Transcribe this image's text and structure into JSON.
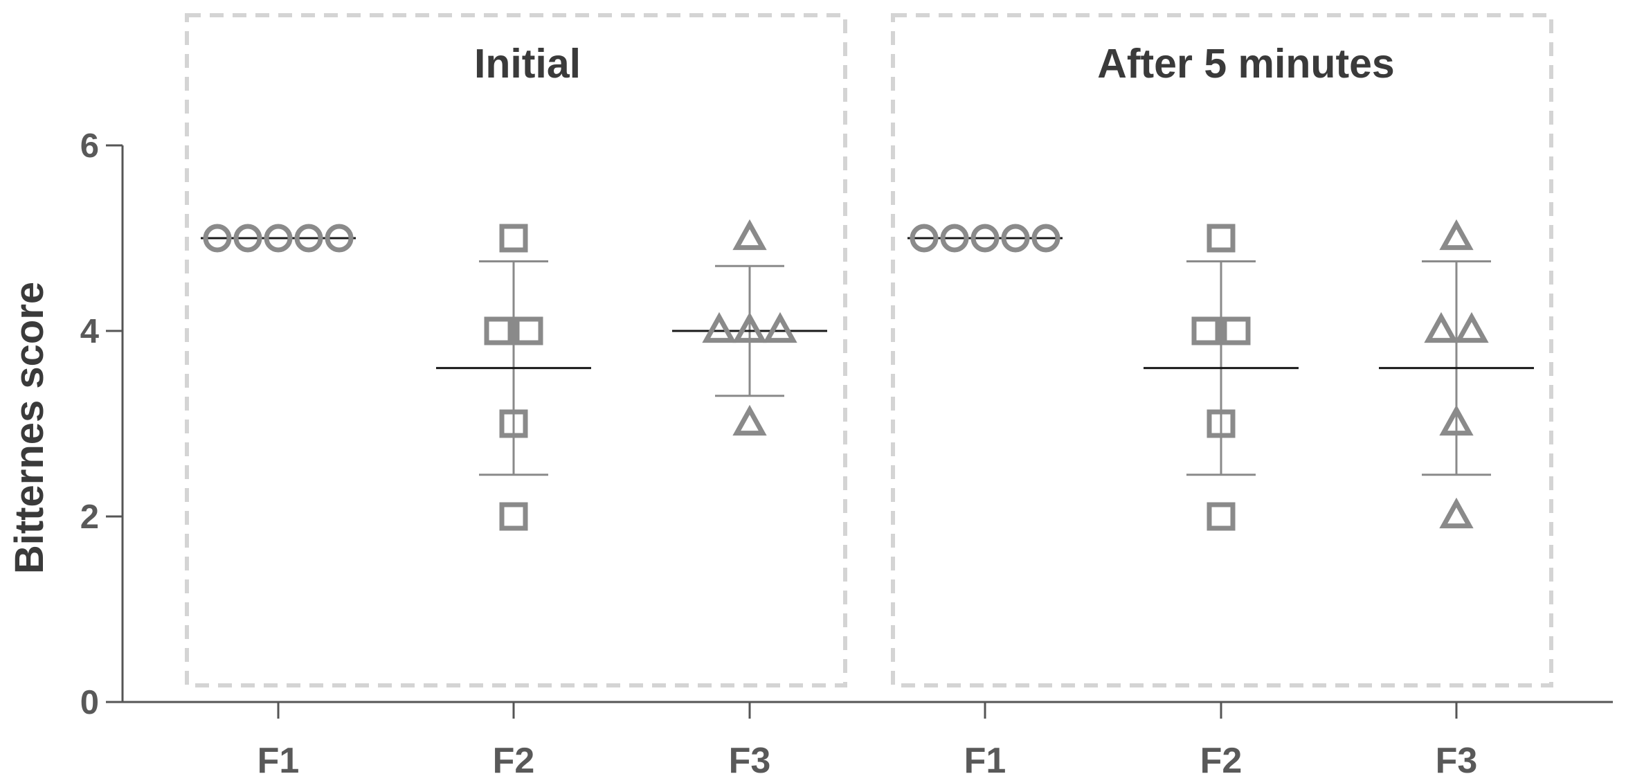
{
  "chart_data": {
    "type": "scatter",
    "ylabel": "Bitternes score",
    "ylim": [
      0,
      6
    ],
    "yticks": [
      "0",
      "2",
      "4",
      "6"
    ],
    "grid": false,
    "colors": {
      "axis": "#555555",
      "marker": "#8a8a8a",
      "mean_line": "#1a1a1a",
      "panel_border": "#d4d4d4"
    },
    "panels": [
      {
        "title": "Initial",
        "groups": [
          {
            "category": "F1",
            "marker": "circle",
            "values": [
              5,
              5,
              5,
              5,
              5
            ],
            "mean": 5.0,
            "sd_low": 5.0,
            "sd_high": 5.0
          },
          {
            "category": "F2",
            "marker": "square",
            "values": [
              5,
              4,
              4,
              3,
              2
            ],
            "mean": 3.6,
            "sd_low": 2.45,
            "sd_high": 4.75
          },
          {
            "category": "F3",
            "marker": "triangle",
            "values": [
              5,
              4,
              4,
              4,
              3
            ],
            "mean": 4.0,
            "sd_low": 3.3,
            "sd_high": 4.7
          }
        ]
      },
      {
        "title": "After 5 minutes",
        "groups": [
          {
            "category": "F1",
            "marker": "circle",
            "values": [
              5,
              5,
              5,
              5,
              5
            ],
            "mean": 5.0,
            "sd_low": 5.0,
            "sd_high": 5.0
          },
          {
            "category": "F2",
            "marker": "square",
            "values": [
              5,
              4,
              4,
              3,
              2
            ],
            "mean": 3.6,
            "sd_low": 2.45,
            "sd_high": 4.75
          },
          {
            "category": "F3",
            "marker": "triangle",
            "values": [
              5,
              4,
              4,
              3,
              2
            ],
            "mean": 3.6,
            "sd_low": 2.45,
            "sd_high": 4.75
          }
        ]
      }
    ]
  }
}
